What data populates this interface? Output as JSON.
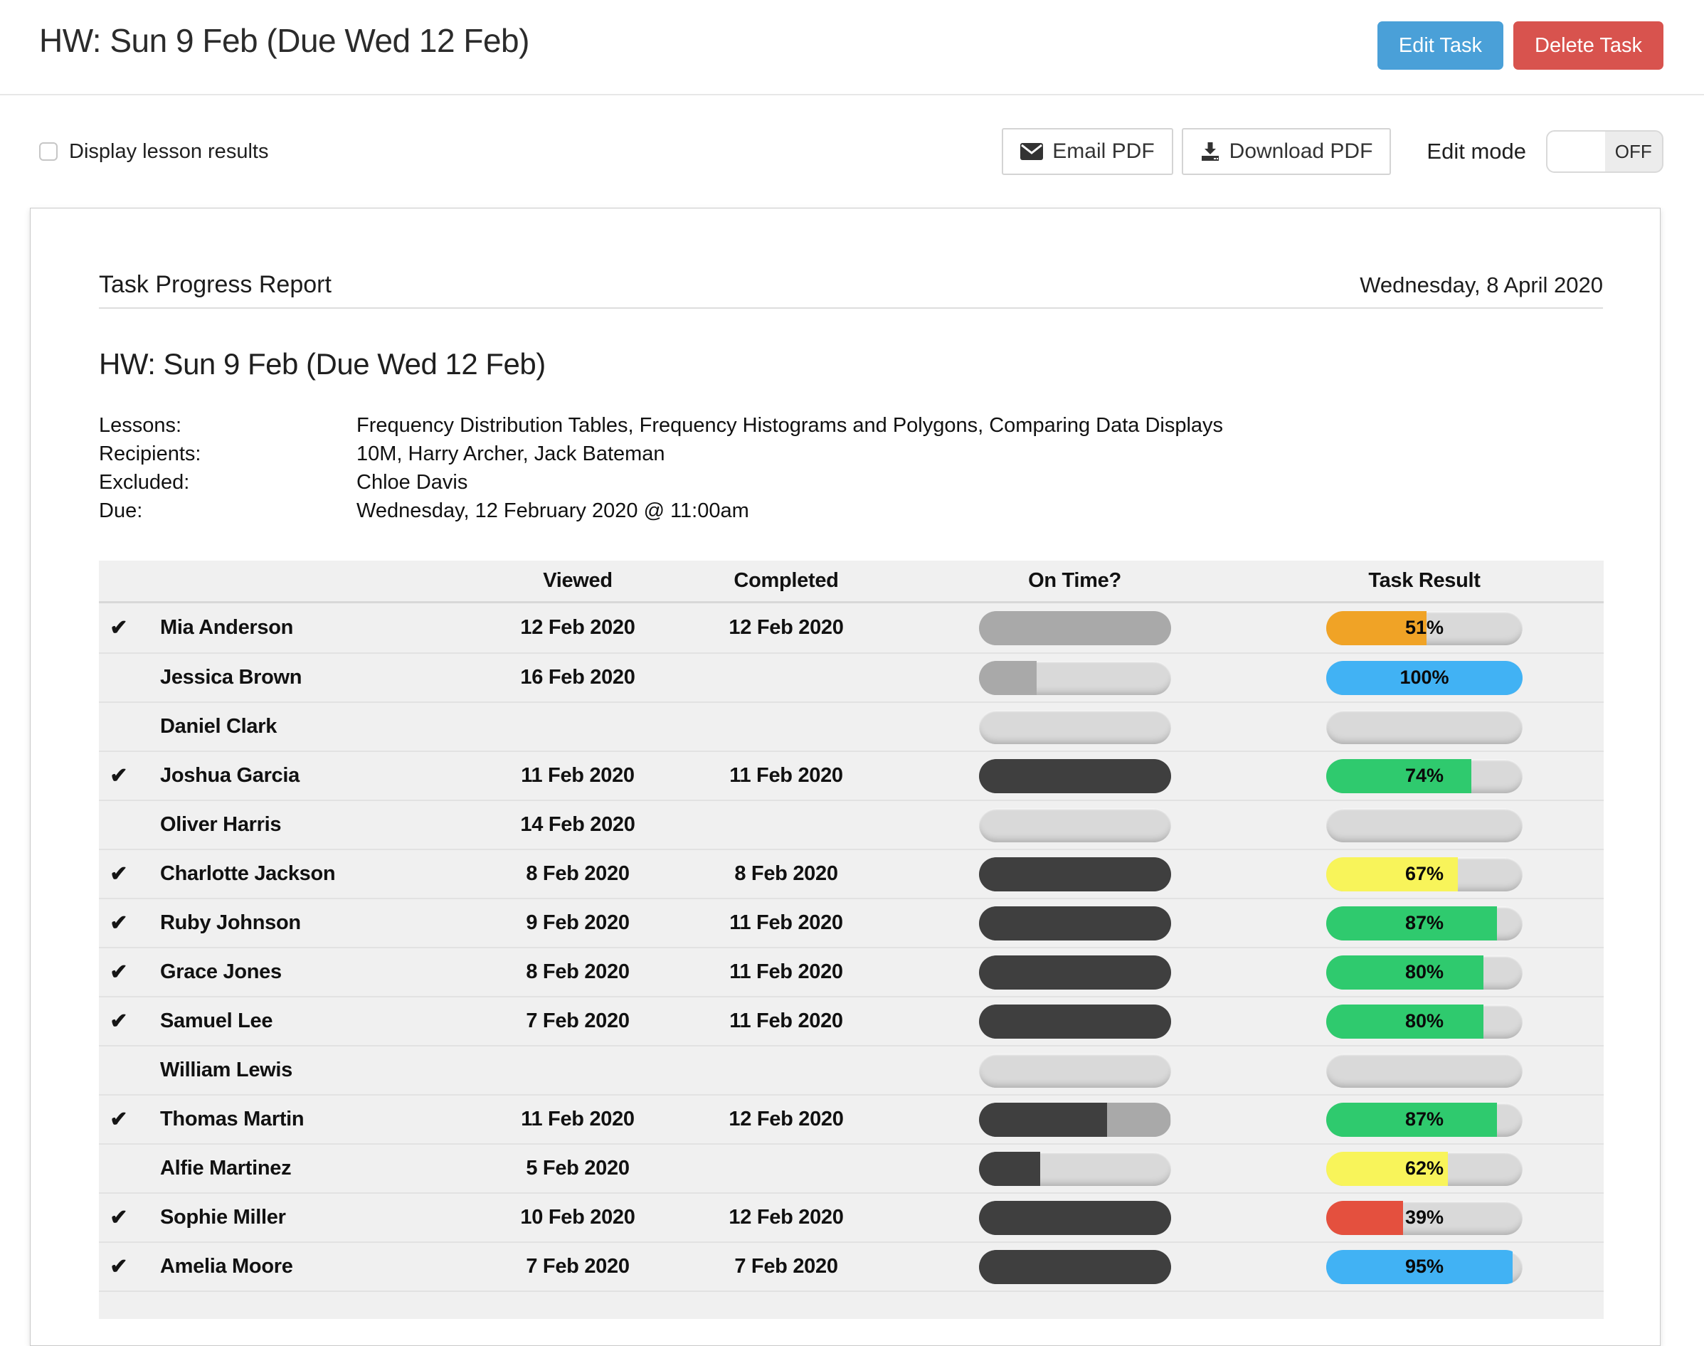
{
  "header": {
    "title": "HW: Sun 9 Feb (Due Wed 12 Feb)",
    "edit_task_label": "Edit Task",
    "delete_task_label": "Delete Task"
  },
  "toolbar": {
    "display_lesson_results_label": "Display lesson results",
    "display_lesson_results_checked": false,
    "email_pdf_label": "Email PDF",
    "download_pdf_label": "Download PDF",
    "edit_mode_label": "Edit mode",
    "edit_mode_state": "OFF"
  },
  "report": {
    "heading": "Task Progress Report",
    "generated_date": "Wednesday, 8 April 2020",
    "task_title": "HW: Sun 9 Feb (Due Wed 12 Feb)",
    "meta": [
      {
        "label": "Lessons:",
        "value": "Frequency Distribution Tables, Frequency Histograms and Polygons, Comparing Data Displays"
      },
      {
        "label": "Recipients:",
        "value": "10M, Harry Archer, Jack Bateman"
      },
      {
        "label": "Excluded:",
        "value": "Chloe Davis"
      },
      {
        "label": "Due:",
        "value": "Wednesday, 12 February 2020 @ 11:00am"
      }
    ]
  },
  "table": {
    "done_glyph": "✔",
    "headers": [
      "",
      "",
      "Viewed",
      "Completed",
      "On Time?",
      "Task Result"
    ],
    "rows": [
      {
        "done": true,
        "name": "Mia Anderson",
        "viewed": "12 Feb 2020",
        "completed": "12 Feb 2020",
        "on_time_segments": [
          {
            "color_key": "late_gray",
            "pct": 100
          }
        ],
        "result": {
          "pct": 51,
          "label": "51%",
          "color_key": "orange"
        }
      },
      {
        "done": false,
        "name": "Jessica Brown",
        "viewed": "16 Feb 2020",
        "completed": "",
        "on_time_segments": [
          {
            "color_key": "late_gray",
            "pct": 30
          }
        ],
        "result": {
          "pct": 100,
          "label": "100%",
          "color_key": "blue"
        }
      },
      {
        "done": false,
        "name": "Daniel Clark",
        "viewed": "",
        "completed": "",
        "on_time_segments": [],
        "result": null
      },
      {
        "done": true,
        "name": "Joshua Garcia",
        "viewed": "11 Feb 2020",
        "completed": "11 Feb 2020",
        "on_time_segments": [
          {
            "color_key": "dark",
            "pct": 100
          }
        ],
        "result": {
          "pct": 74,
          "label": "74%",
          "color_key": "green"
        }
      },
      {
        "done": false,
        "name": "Oliver Harris",
        "viewed": "14 Feb 2020",
        "completed": "",
        "on_time_segments": [],
        "result": null
      },
      {
        "done": true,
        "name": "Charlotte Jackson",
        "viewed": "8 Feb 2020",
        "completed": "8 Feb 2020",
        "on_time_segments": [
          {
            "color_key": "dark",
            "pct": 100
          }
        ],
        "result": {
          "pct": 67,
          "label": "67%",
          "color_key": "yellow"
        }
      },
      {
        "done": true,
        "name": "Ruby Johnson",
        "viewed": "9 Feb 2020",
        "completed": "11 Feb 2020",
        "on_time_segments": [
          {
            "color_key": "dark",
            "pct": 100
          }
        ],
        "result": {
          "pct": 87,
          "label": "87%",
          "color_key": "green"
        }
      },
      {
        "done": true,
        "name": "Grace Jones",
        "viewed": "8 Feb 2020",
        "completed": "11 Feb 2020",
        "on_time_segments": [
          {
            "color_key": "dark",
            "pct": 100
          }
        ],
        "result": {
          "pct": 80,
          "label": "80%",
          "color_key": "green"
        }
      },
      {
        "done": true,
        "name": "Samuel Lee",
        "viewed": "7 Feb 2020",
        "completed": "11 Feb 2020",
        "on_time_segments": [
          {
            "color_key": "dark",
            "pct": 100
          }
        ],
        "result": {
          "pct": 80,
          "label": "80%",
          "color_key": "green"
        }
      },
      {
        "done": false,
        "name": "William Lewis",
        "viewed": "",
        "completed": "",
        "on_time_segments": [],
        "result": null
      },
      {
        "done": true,
        "name": "Thomas Martin",
        "viewed": "11 Feb 2020",
        "completed": "12 Feb 2020",
        "on_time_segments": [
          {
            "color_key": "dark",
            "pct": 67
          },
          {
            "color_key": "late_gray",
            "pct": 33
          }
        ],
        "result": {
          "pct": 87,
          "label": "87%",
          "color_key": "green"
        }
      },
      {
        "done": false,
        "name": "Alfie Martinez",
        "viewed": "5 Feb 2020",
        "completed": "",
        "on_time_segments": [
          {
            "color_key": "dark",
            "pct": 32
          }
        ],
        "result": {
          "pct": 62,
          "label": "62%",
          "color_key": "yellow"
        }
      },
      {
        "done": true,
        "name": "Sophie Miller",
        "viewed": "10 Feb 2020",
        "completed": "12 Feb 2020",
        "on_time_segments": [
          {
            "color_key": "dark",
            "pct": 100
          }
        ],
        "result": {
          "pct": 39,
          "label": "39%",
          "color_key": "red"
        }
      },
      {
        "done": true,
        "name": "Amelia Moore",
        "viewed": "7 Feb 2020",
        "completed": "7 Feb 2020",
        "on_time_segments": [
          {
            "color_key": "dark",
            "pct": 100
          }
        ],
        "result": {
          "pct": 95,
          "label": "95%",
          "color_key": "blue"
        }
      }
    ]
  },
  "colors": {
    "edit_button": "#4aa0d8",
    "delete_button": "#d8534e",
    "dark": "#3f3f3f",
    "late_gray": "#a9a9a9",
    "track": "#d9d9d9",
    "orange": "#f0a326",
    "blue": "#41b2f4",
    "green": "#2fca6e",
    "yellow": "#f8f45a",
    "red": "#e4503e"
  }
}
